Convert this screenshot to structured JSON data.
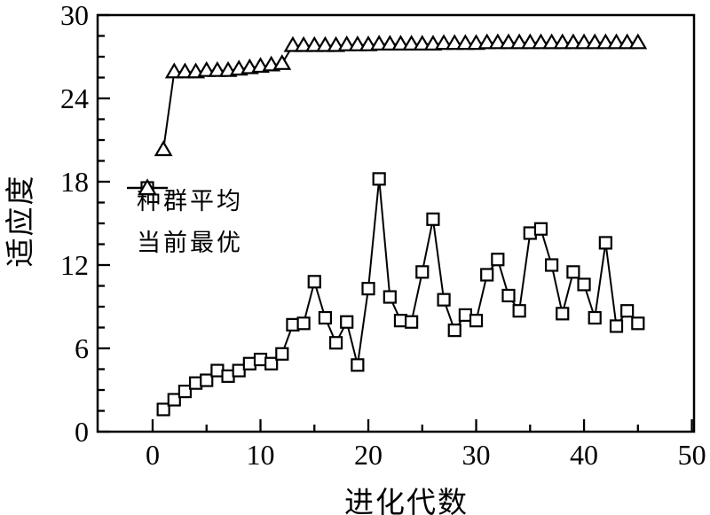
{
  "figure": {
    "background": "#ffffff",
    "axis_color": "#000000",
    "line_color": "#000000",
    "marker_fill": "#ffffff"
  },
  "chart_data": {
    "type": "line",
    "title": "",
    "xlabel": "进化代数",
    "ylabel": "适应度",
    "xlim": [
      -5.1,
      50.2
    ],
    "ylim": [
      0,
      30
    ],
    "x_major_ticks": [
      0,
      10,
      20,
      30,
      40,
      50
    ],
    "x_minor_ticks": [
      5,
      15,
      25,
      35,
      45
    ],
    "y_major_ticks": [
      0,
      6,
      12,
      18,
      24,
      30
    ],
    "y_minor_step": 1.5,
    "grid": false,
    "legend_position": "left-center",
    "x": [
      1,
      2,
      3,
      4,
      5,
      6,
      7,
      8,
      9,
      10,
      11,
      12,
      13,
      14,
      15,
      16,
      17,
      18,
      19,
      20,
      21,
      22,
      23,
      24,
      25,
      26,
      27,
      28,
      29,
      30,
      31,
      32,
      33,
      34,
      35,
      36,
      37,
      38,
      39,
      40,
      41,
      42,
      43,
      44,
      45
    ],
    "series": [
      {
        "name": "种群平均",
        "marker": "square",
        "values": [
          1.6,
          2.3,
          2.9,
          3.5,
          3.7,
          4.4,
          4.0,
          4.4,
          4.9,
          5.2,
          4.9,
          5.6,
          7.7,
          7.8,
          10.8,
          8.2,
          6.4,
          7.9,
          4.8,
          10.3,
          18.2,
          9.7,
          8.0,
          7.9,
          11.5,
          15.3,
          9.5,
          7.3,
          8.4,
          8.0,
          11.3,
          12.4,
          9.8,
          8.7,
          14.3,
          14.6,
          12.0,
          8.5,
          11.5,
          10.6,
          8.2,
          13.6,
          7.6,
          8.7,
          7.8
        ]
      },
      {
        "name": "当前最优",
        "marker": "triangle",
        "values": [
          20.3,
          25.9,
          25.9,
          25.9,
          26.0,
          26.0,
          26.0,
          26.1,
          26.2,
          26.3,
          26.4,
          26.5,
          27.8,
          27.8,
          27.8,
          27.8,
          27.8,
          27.85,
          27.85,
          27.85,
          27.9,
          27.9,
          27.9,
          27.9,
          27.9,
          27.9,
          27.95,
          27.95,
          27.95,
          27.95,
          28.0,
          28.0,
          28.0,
          28.0,
          28.0,
          28.0,
          28.0,
          28.0,
          28.0,
          28.0,
          28.0,
          28.0,
          28.0,
          28.0,
          28.0
        ]
      }
    ]
  }
}
